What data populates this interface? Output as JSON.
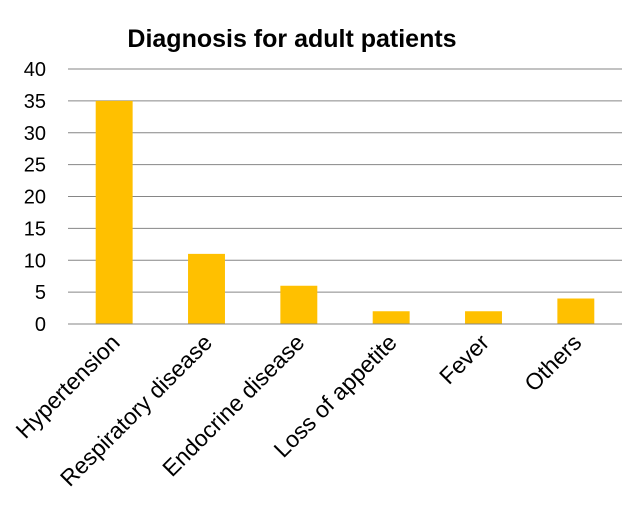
{
  "chart_data": {
    "type": "bar",
    "title": "Diagnosis for adult patients",
    "categories": [
      "Hypertension",
      "Respiratory disease",
      "Endocrine disease",
      "Loss of appetite",
      "Fever",
      "Others"
    ],
    "values": [
      35,
      11,
      6,
      2,
      2,
      4
    ],
    "ylim": [
      0,
      40
    ],
    "yticks": [
      0,
      5,
      10,
      15,
      20,
      25,
      30,
      35,
      40
    ],
    "grid": true,
    "legend": "none",
    "colors": {
      "bar": "#FFC000",
      "grid": "#868686",
      "axis": "#868686"
    }
  }
}
